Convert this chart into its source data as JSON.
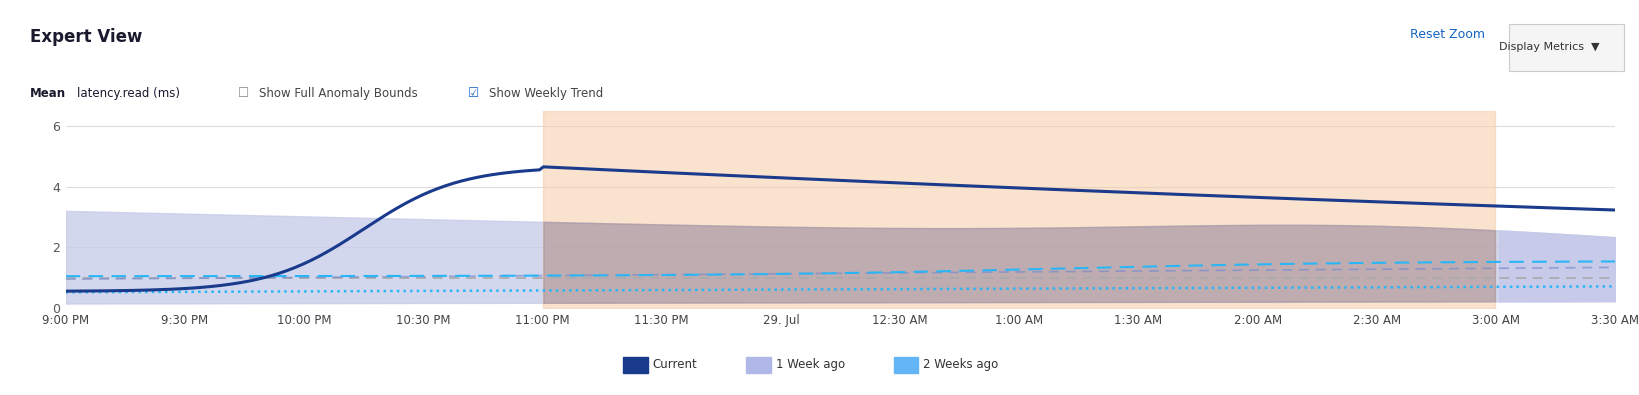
{
  "title": "Expert View",
  "subtitle": "Mean latency.read (ms)",
  "bg_color": "#ffffff",
  "plot_bg_color": "#ffffff",
  "grid_color": "#e0e0e0",
  "x_labels": [
    "9:00 PM",
    "9:30 PM",
    "10:00 PM",
    "10:30 PM",
    "11:00 PM",
    "11:30 PM",
    "29. Jul",
    "12:30 AM",
    "1:00 AM",
    "1:30 AM",
    "2:00 AM",
    "2:30 AM",
    "3:00 AM",
    "3:30 AM"
  ],
  "x_ticks": [
    0,
    30,
    60,
    90,
    120,
    150,
    180,
    210,
    240,
    270,
    300,
    330,
    360,
    390
  ],
  "ylim": [
    0,
    6.5
  ],
  "yticks": [
    0,
    2,
    4,
    6
  ],
  "current_color": "#1a3a8c",
  "week1_fill_color": "#c5cae9",
  "week2_dash_color": "#42a5f5",
  "anomaly_fill_color": "#f5cba7",
  "overlap_fill_color": "#b0a0b8",
  "legend_current_color": "#1a3a8c",
  "legend_week1_color": "#b0b8e8",
  "legend_week2_color": "#64b5f6",
  "anomaly_start": 120,
  "anomaly_end": 360,
  "week1_band_end": 390
}
